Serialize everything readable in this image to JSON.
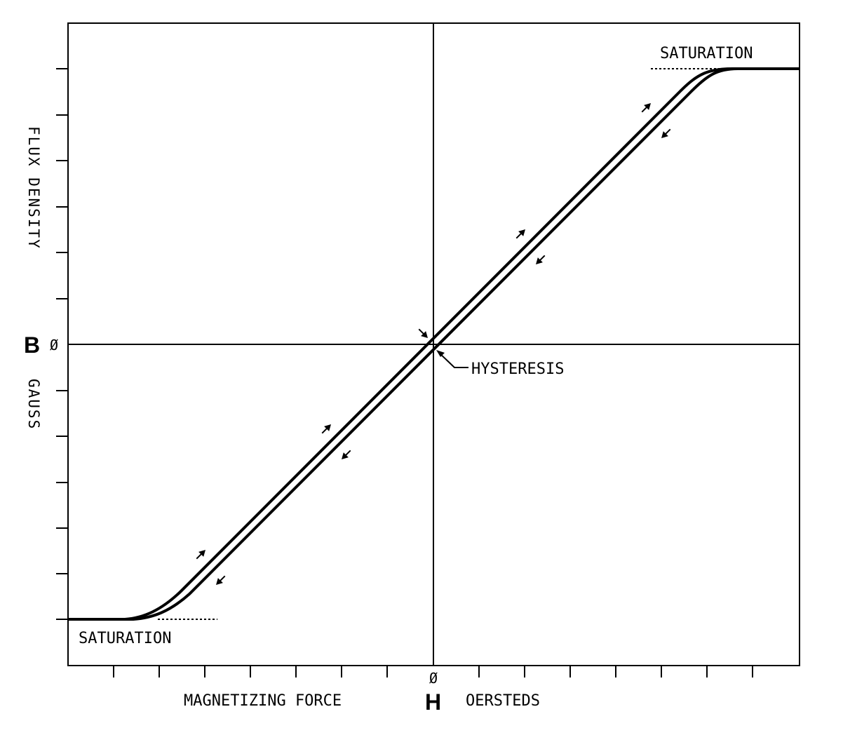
{
  "labels": {
    "saturation_top": "SATURATION",
    "saturation_bottom": "SATURATION",
    "hysteresis": "HYSTERESIS",
    "x_axis_left": "MAGNETIZING FORCE",
    "x_axis_symbol": "H",
    "x_axis_right": "OERSTEDS",
    "x_zero": "Ø",
    "y_zero": "Ø",
    "y_axis_symbol": "B",
    "y_axis_upper": "FLUX DENSITY",
    "y_axis_lower": "GAUSS"
  },
  "colors": {
    "ink": "#000000",
    "background": "#ffffff"
  },
  "icons": {
    "arrow_up": "arrow-up-right-icon",
    "arrow_down": "arrow-down-left-icon"
  }
}
